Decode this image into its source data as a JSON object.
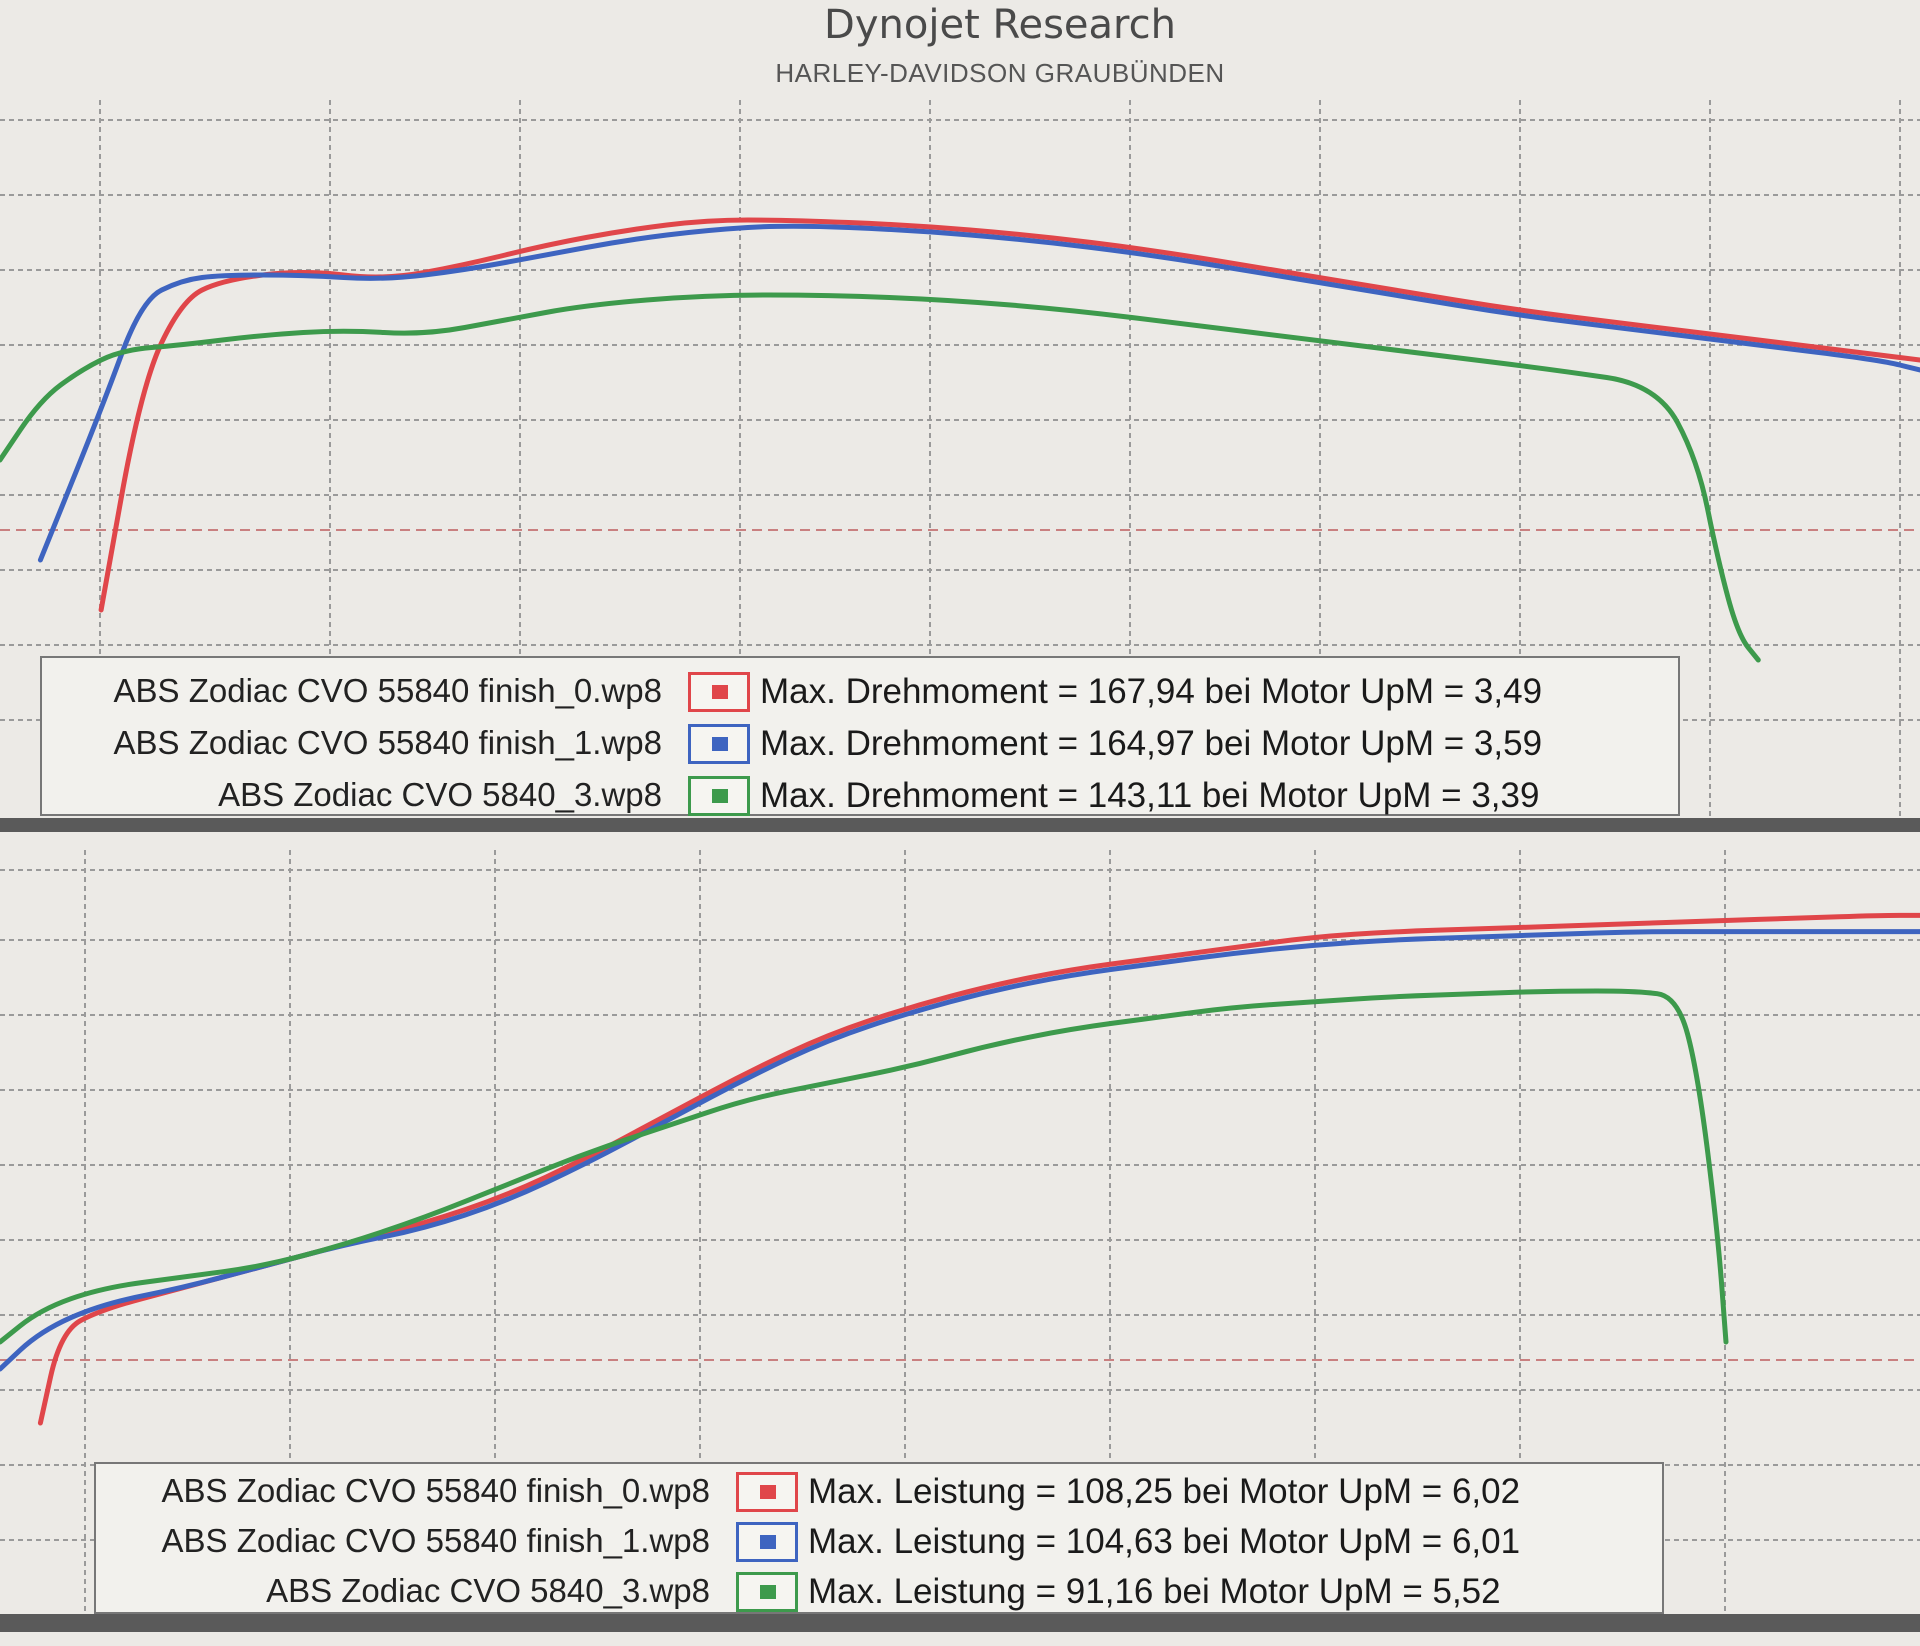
{
  "header": {
    "title": "Dynojet Research",
    "subtitle": "HARLEY-DAVIDSON GRAUBÜNDEN"
  },
  "colors": {
    "run0": "#e0464a",
    "run1": "#3e64c0",
    "run3": "#3d9a4c"
  },
  "chart_data": [
    {
      "type": "line",
      "title": "",
      "xlabel": "",
      "ylabel": "",
      "grid": true,
      "legend_position": "bottom",
      "xlim": [
        1.75,
        6.5
      ],
      "ylim": [
        0,
        100
      ],
      "series": [
        {
          "name": "ABS Zodiac CVO 55840 finish_0.wp8",
          "color_key": "run0",
          "x": [
            2.0,
            2.1,
            2.2,
            2.3,
            2.5,
            2.7,
            2.9,
            3.1,
            3.3,
            3.5,
            3.7,
            4.0,
            4.3,
            4.6,
            4.9,
            5.2,
            5.5,
            5.8,
            6.1,
            6.4,
            6.5
          ],
          "y": [
            10,
            55,
            72,
            76,
            78,
            76,
            79,
            83,
            86,
            88,
            88,
            87,
            85,
            82,
            78,
            74,
            70,
            67,
            64,
            61,
            60
          ]
        },
        {
          "name": "ABS Zodiac CVO 55840 finish_1.wp8",
          "color_key": "run1",
          "x": [
            1.85,
            2.0,
            2.1,
            2.2,
            2.3,
            2.5,
            2.7,
            2.9,
            3.1,
            3.3,
            3.5,
            3.7,
            4.0,
            4.3,
            4.6,
            4.9,
            5.2,
            5.5,
            5.8,
            6.1,
            6.4,
            6.5
          ],
          "y": [
            20,
            50,
            72,
            76,
            77,
            77,
            76,
            78,
            81,
            84,
            86,
            87,
            86,
            84,
            81,
            77,
            73,
            69,
            66,
            63,
            60,
            58
          ]
        },
        {
          "name": "ABS Zodiac CVO 5840_3.wp8",
          "color_key": "run3",
          "x": [
            1.75,
            1.85,
            1.95,
            2.05,
            2.2,
            2.4,
            2.6,
            2.8,
            3.0,
            3.2,
            3.5,
            3.8,
            4.1,
            4.4,
            4.7,
            5.0,
            5.3,
            5.6,
            5.85,
            5.95,
            6.0,
            6.05,
            6.1
          ],
          "y": [
            40,
            52,
            58,
            62,
            63,
            65,
            66,
            65,
            68,
            71,
            73,
            73,
            72,
            70,
            67,
            64,
            61,
            58,
            55,
            40,
            20,
            5,
            0
          ]
        }
      ]
    },
    {
      "type": "line",
      "title": "",
      "xlabel": "",
      "ylabel": "",
      "grid": true,
      "legend_position": "bottom",
      "xlim": [
        1.75,
        6.5
      ],
      "ylim": [
        0,
        100
      ],
      "series": [
        {
          "name": "ABS Zodiac CVO 55840 finish_0.wp8",
          "color_key": "run0",
          "x": [
            1.85,
            1.9,
            2.0,
            2.2,
            2.4,
            2.6,
            2.8,
            3.0,
            3.2,
            3.4,
            3.6,
            3.8,
            4.0,
            4.2,
            4.4,
            4.6,
            4.8,
            5.0,
            5.2,
            5.4,
            5.6,
            5.8,
            6.0,
            6.2,
            6.4,
            6.5
          ],
          "y": [
            5,
            22,
            26,
            30,
            34,
            38,
            42,
            47,
            54,
            62,
            70,
            77,
            82,
            86,
            89,
            91,
            93,
            95,
            96,
            96.5,
            97,
            97.5,
            98,
            98.5,
            99,
            99
          ]
        },
        {
          "name": "ABS Zodiac CVO 55840 finish_1.wp8",
          "color_key": "run1",
          "x": [
            1.75,
            1.85,
            2.0,
            2.2,
            2.4,
            2.6,
            2.8,
            3.0,
            3.2,
            3.4,
            3.6,
            3.8,
            4.0,
            4.2,
            4.4,
            4.6,
            4.8,
            5.0,
            5.2,
            5.4,
            5.6,
            5.8,
            6.0,
            6.2,
            6.4,
            6.5
          ],
          "y": [
            15,
            22,
            27,
            30,
            34,
            38,
            41,
            46,
            53,
            61,
            69,
            76,
            81,
            85,
            88,
            90,
            92,
            93.5,
            94.5,
            95,
            95.5,
            96,
            96,
            96,
            96,
            96
          ]
        },
        {
          "name": "ABS Zodiac CVO 5840_3.wp8",
          "color_key": "run3",
          "x": [
            1.75,
            1.85,
            2.0,
            2.2,
            2.4,
            2.6,
            2.8,
            3.0,
            3.2,
            3.4,
            3.6,
            3.8,
            4.0,
            4.2,
            4.4,
            4.6,
            4.8,
            5.0,
            5.2,
            5.4,
            5.6,
            5.8,
            5.9,
            5.95,
            6.0,
            6.02
          ],
          "y": [
            20,
            26,
            30,
            32,
            34,
            38,
            43,
            49,
            55,
            60,
            65,
            68,
            71,
            75,
            78,
            80,
            82,
            83,
            84,
            84.5,
            85,
            85,
            84,
            70,
            40,
            20
          ]
        }
      ]
    }
  ],
  "legends": {
    "torque": [
      {
        "file": "ABS Zodiac CVO 55840 finish_0.wp8",
        "color_key": "run0",
        "text": "Max. Drehmoment = 167,94 bei Motor UpM = 3,49"
      },
      {
        "file": "ABS Zodiac CVO 55840 finish_1.wp8",
        "color_key": "run1",
        "text": "Max. Drehmoment = 164,97 bei Motor UpM = 3,59"
      },
      {
        "file": "ABS Zodiac CVO 5840_3.wp8",
        "color_key": "run3",
        "text": "Max. Drehmoment = 143,11 bei Motor UpM = 3,39"
      }
    ],
    "power": [
      {
        "file": "ABS Zodiac CVO 55840 finish_0.wp8",
        "color_key": "run0",
        "text": "Max. Leistung = 108,25 bei Motor UpM = 6,02"
      },
      {
        "file": "ABS Zodiac CVO 55840 finish_1.wp8",
        "color_key": "run1",
        "text": "Max. Leistung = 104,63 bei Motor UpM = 6,01"
      },
      {
        "file": "ABS Zodiac CVO 5840_3.wp8",
        "color_key": "run3",
        "text": "Max. Leistung = 91,16 bei Motor UpM = 5,52"
      }
    ]
  }
}
